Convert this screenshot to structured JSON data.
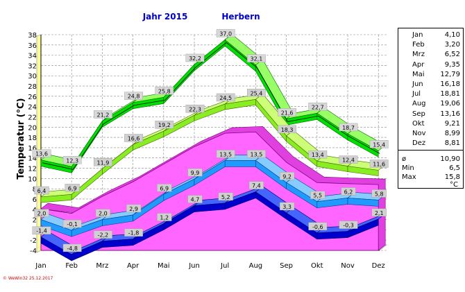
{
  "header": {
    "year_label": "Jahr 2015",
    "station": "Herbern"
  },
  "footer": {
    "credit": "© WeWin32 25.12.2017"
  },
  "legend": {
    "months": [
      {
        "name": "Jan",
        "value": "4,10"
      },
      {
        "name": "Feb",
        "value": "3,20"
      },
      {
        "name": "Mrz",
        "value": "6,52"
      },
      {
        "name": "Apr",
        "value": "9,35"
      },
      {
        "name": "Mai",
        "value": "12,79"
      },
      {
        "name": "Jun",
        "value": "16,18"
      },
      {
        "name": "Jul",
        "value": "18,81"
      },
      {
        "name": "Aug",
        "value": "19,06"
      },
      {
        "name": "Sep",
        "value": "13,16"
      },
      {
        "name": "Okt",
        "value": "9,21"
      },
      {
        "name": "Nov",
        "value": "8,99"
      },
      {
        "name": "Dez",
        "value": "8,81"
      }
    ],
    "stats": [
      {
        "name": "ø",
        "value": "10,90"
      },
      {
        "name": "Min",
        "value": "6,5"
      },
      {
        "name": "Max",
        "value": "15,8"
      }
    ],
    "unit": "°C"
  },
  "colors": {
    "max_band": "#00e000",
    "max_band_light": "#66ff44",
    "avg_max_band": "#88ee22",
    "mean_band": "#2299ff",
    "min_band": "#0000cc",
    "area_fill": "#ff66ff",
    "title_blue": "#0000cc",
    "label_bg": "#d0d0d0",
    "axis_wall": "#ffff99"
  },
  "chart_data": {
    "type": "line",
    "title": "Jahr 2015 Herbern",
    "ylabel": "Temperatur  (°C)",
    "xlabel": "",
    "categories": [
      "Jan",
      "Feb",
      "Mrz",
      "Apr",
      "Mai",
      "Jun",
      "Jul",
      "Aug",
      "Sep",
      "Okt",
      "Nov",
      "Dez"
    ],
    "ylim": [
      -4,
      38
    ],
    "yticks": [
      -4,
      -2,
      0,
      2,
      4,
      6,
      8,
      10,
      12,
      14,
      16,
      18,
      20,
      22,
      24,
      26,
      28,
      30,
      32,
      34,
      36,
      38
    ],
    "grid": true,
    "series": [
      {
        "values": [
          13.6,
          12.3,
          21.2,
          24.8,
          25.8,
          32.2,
          37.0,
          32.1,
          21.6,
          22.7,
          18.7,
          15.4
        ],
        "labels": [
          "13,6",
          "12,3",
          "21,2",
          "24,8",
          "25,8",
          "32,2",
          "37,0",
          "32,1",
          "21,6",
          "22,7",
          "18,7",
          "15,4"
        ]
      },
      {
        "values": [
          6.4,
          6.9,
          11.9,
          16.6,
          19.2,
          22.3,
          24.5,
          25.4,
          18.3,
          13.4,
          12.4,
          11.6
        ],
        "labels": [
          "6,4",
          "6,9",
          "11,9",
          "16,6",
          "19,2",
          "22,3",
          "24,5",
          "25,4",
          "18,3",
          "13,4",
          "12,4",
          "11,6"
        ]
      },
      {
        "values": [
          2.0,
          -0.1,
          2.0,
          2.9,
          6.9,
          9.9,
          13.5,
          13.5,
          9.2,
          5.5,
          6.2,
          5.8
        ],
        "labels": [
          "2,0",
          "-0,1",
          "2,0",
          "2,9",
          "6,9",
          "9,9",
          "13,5",
          "13,5",
          "9,2",
          "5,5",
          "6,2",
          "5,8"
        ]
      },
      {
        "values": [
          -1.4,
          -4.8,
          -2.2,
          -1.8,
          1.2,
          4.7,
          5.2,
          7.4,
          3.3,
          -0.6,
          -0.3,
          2.1
        ],
        "labels": [
          "-1,4",
          "-4,8",
          "-2,2",
          "-1,8",
          "1,2",
          "4,7",
          "5,2",
          "7,4",
          "3,3",
          "-0,6",
          "-0,3",
          "2,1"
        ]
      }
    ],
    "area_band": {
      "upper": [
        4.1,
        3.2,
        6.52,
        9.35,
        12.79,
        16.18,
        18.81,
        19.06,
        13.16,
        9.21,
        8.99,
        8.81
      ]
    }
  }
}
